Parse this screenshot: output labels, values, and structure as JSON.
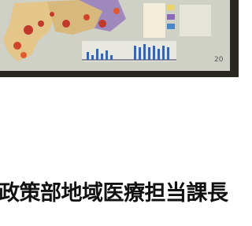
{
  "slide": {
    "page_number": "20"
  },
  "caption": {
    "text": "政策部地域医療担当課長"
  }
}
